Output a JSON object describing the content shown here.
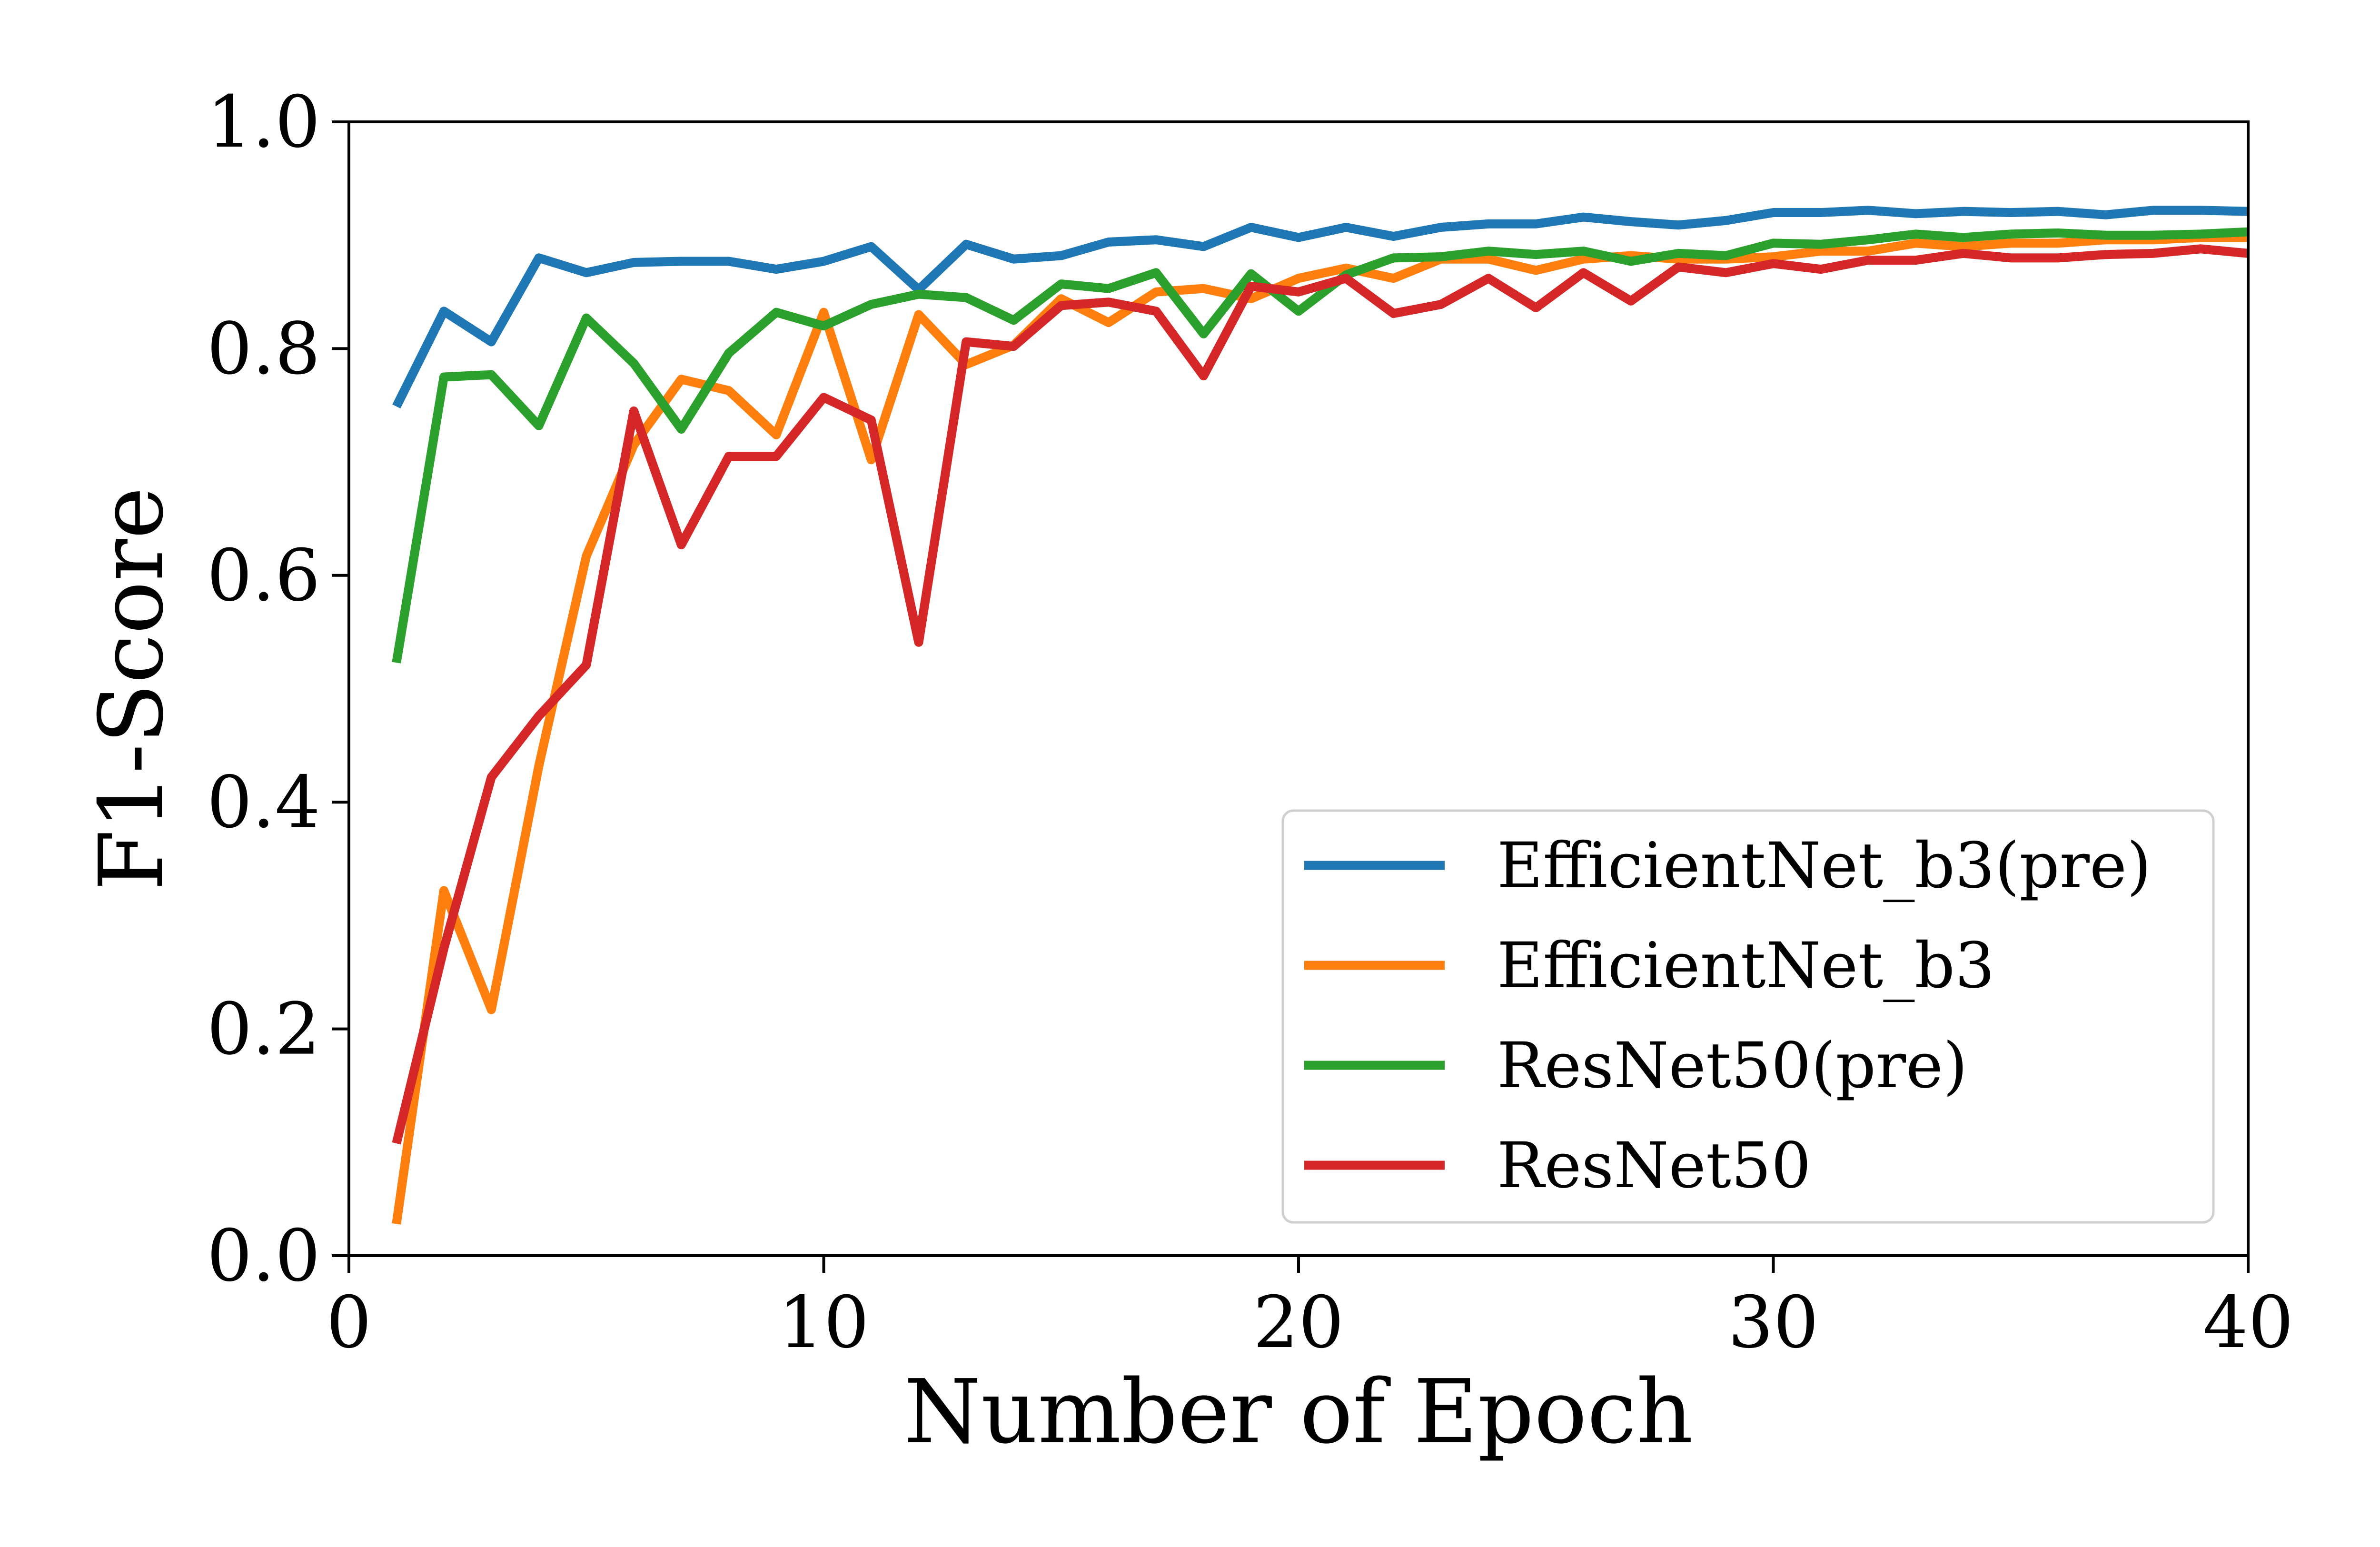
{
  "chart_data": {
    "type": "line",
    "title": "",
    "xlabel": "Number of Epoch",
    "ylabel": "F1-Score",
    "xlim": [
      0,
      40
    ],
    "ylim": [
      0.0,
      1.0
    ],
    "xticks": [
      "0",
      "10",
      "20",
      "30",
      "40"
    ],
    "yticks": [
      "0.0",
      "0.2",
      "0.4",
      "0.6",
      "0.8",
      "1.0"
    ],
    "grid": false,
    "legend_position": "lower-right",
    "x": [
      1,
      2,
      3,
      4,
      5,
      6,
      7,
      8,
      9,
      10,
      11,
      12,
      13,
      14,
      15,
      16,
      17,
      18,
      19,
      20,
      21,
      22,
      23,
      24,
      25,
      26,
      27,
      28,
      29,
      30,
      31,
      32,
      33,
      34,
      35,
      36,
      37,
      38,
      39,
      40
    ],
    "series": [
      {
        "name": "EfficientNet_b3(pre)",
        "color": "#1f77b4",
        "values": [
          0.749,
          0.833,
          0.806,
          0.88,
          0.867,
          0.876,
          0.877,
          0.877,
          0.87,
          0.877,
          0.89,
          0.852,
          0.892,
          0.879,
          0.882,
          0.894,
          0.896,
          0.89,
          0.907,
          0.898,
          0.907,
          0.899,
          0.907,
          0.91,
          0.91,
          0.916,
          0.912,
          0.909,
          0.913,
          0.92,
          0.92,
          0.922,
          0.919,
          0.921,
          0.92,
          0.921,
          0.918,
          0.922,
          0.922,
          0.921
        ]
      },
      {
        "name": "EfficientNet_b3",
        "color": "#ff7f0e",
        "values": [
          0.028,
          0.322,
          0.217,
          0.432,
          0.617,
          0.715,
          0.773,
          0.763,
          0.724,
          0.832,
          0.702,
          0.83,
          0.786,
          0.803,
          0.844,
          0.823,
          0.85,
          0.853,
          0.844,
          0.862,
          0.871,
          0.862,
          0.879,
          0.879,
          0.869,
          0.879,
          0.882,
          0.879,
          0.879,
          0.881,
          0.886,
          0.886,
          0.893,
          0.89,
          0.893,
          0.893,
          0.896,
          0.896,
          0.898,
          0.898
        ]
      },
      {
        "name": "ResNet50(pre)",
        "color": "#2ca02c",
        "values": [
          0.523,
          0.775,
          0.777,
          0.732,
          0.827,
          0.787,
          0.729,
          0.796,
          0.832,
          0.82,
          0.839,
          0.848,
          0.845,
          0.825,
          0.857,
          0.853,
          0.867,
          0.813,
          0.866,
          0.833,
          0.865,
          0.88,
          0.881,
          0.886,
          0.883,
          0.886,
          0.877,
          0.884,
          0.882,
          0.893,
          0.892,
          0.896,
          0.901,
          0.898,
          0.901,
          0.902,
          0.9,
          0.9,
          0.901,
          0.903
        ]
      },
      {
        "name": "ResNet50",
        "color": "#d62728",
        "values": [
          0.099,
          0.271,
          0.422,
          0.476,
          0.521,
          0.745,
          0.627,
          0.705,
          0.705,
          0.757,
          0.737,
          0.541,
          0.806,
          0.802,
          0.838,
          0.841,
          0.833,
          0.776,
          0.855,
          0.85,
          0.862,
          0.831,
          0.839,
          0.862,
          0.836,
          0.867,
          0.842,
          0.872,
          0.867,
          0.875,
          0.87,
          0.878,
          0.878,
          0.884,
          0.88,
          0.88,
          0.883,
          0.884,
          0.888,
          0.884
        ]
      }
    ]
  }
}
